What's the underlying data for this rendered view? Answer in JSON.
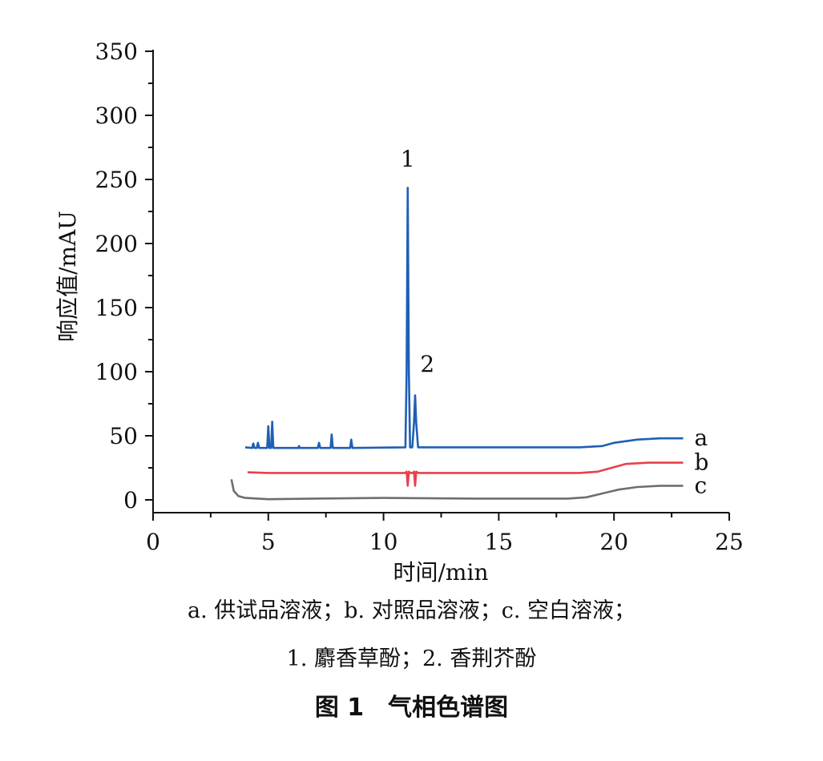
{
  "chart_data": {
    "type": "line",
    "title": "",
    "xlabel": "时间/min",
    "ylabel": "响应值/mAU",
    "xlim": [
      0,
      25
    ],
    "ylim": [
      -10,
      350
    ],
    "x_ticks": [
      0,
      5,
      10,
      15,
      20,
      25
    ],
    "y_ticks": [
      0,
      50,
      100,
      150,
      200,
      250,
      300,
      350
    ],
    "grid": false,
    "series": [
      {
        "name": "a",
        "color": "#1f5fb4",
        "points": [
          [
            4.0,
            41
          ],
          [
            4.3,
            40.5
          ],
          [
            4.35,
            44
          ],
          [
            4.4,
            40.5
          ],
          [
            4.5,
            40.5
          ],
          [
            4.55,
            44.5
          ],
          [
            4.6,
            40.5
          ],
          [
            4.95,
            40.5
          ],
          [
            5.0,
            57.5
          ],
          [
            5.05,
            40.5
          ],
          [
            5.12,
            40.5
          ],
          [
            5.17,
            61
          ],
          [
            5.22,
            40.5
          ],
          [
            6.3,
            40.5
          ],
          [
            6.33,
            42
          ],
          [
            6.36,
            40.5
          ],
          [
            7.15,
            40.5
          ],
          [
            7.2,
            44.5
          ],
          [
            7.25,
            40.5
          ],
          [
            7.7,
            40.5
          ],
          [
            7.75,
            51
          ],
          [
            7.8,
            40.5
          ],
          [
            8.55,
            40.5
          ],
          [
            8.6,
            47
          ],
          [
            8.65,
            40.5
          ],
          [
            10.95,
            41
          ],
          [
            11.0,
            100
          ],
          [
            11.05,
            243.5
          ],
          [
            11.1,
            100
          ],
          [
            11.15,
            41
          ],
          [
            11.25,
            41
          ],
          [
            11.32,
            60
          ],
          [
            11.37,
            81.5
          ],
          [
            11.42,
            60
          ],
          [
            11.5,
            41
          ],
          [
            18.5,
            41
          ],
          [
            19.5,
            42
          ],
          [
            20.0,
            44.5
          ],
          [
            21.0,
            47
          ],
          [
            22.0,
            48
          ],
          [
            23.0,
            48
          ]
        ]
      },
      {
        "name": "b",
        "color": "#e8404a",
        "points": [
          [
            4.1,
            21.5
          ],
          [
            5.0,
            21
          ],
          [
            8.0,
            21
          ],
          [
            10.95,
            21
          ],
          [
            11.0,
            22
          ],
          [
            11.05,
            11
          ],
          [
            11.1,
            22
          ],
          [
            11.15,
            21
          ],
          [
            11.28,
            21
          ],
          [
            11.32,
            22
          ],
          [
            11.37,
            11
          ],
          [
            11.42,
            22
          ],
          [
            11.5,
            21
          ],
          [
            17.0,
            21
          ],
          [
            18.5,
            21
          ],
          [
            19.3,
            22
          ],
          [
            19.9,
            25
          ],
          [
            20.5,
            28
          ],
          [
            21.5,
            29
          ],
          [
            23.0,
            29
          ]
        ]
      },
      {
        "name": "c",
        "color": "#6e6e6e",
        "points": [
          [
            3.4,
            16
          ],
          [
            3.5,
            7
          ],
          [
            3.7,
            3
          ],
          [
            4.0,
            1.5
          ],
          [
            5.0,
            0.5
          ],
          [
            7.0,
            1
          ],
          [
            10.0,
            1.5
          ],
          [
            14.0,
            1
          ],
          [
            18.0,
            1
          ],
          [
            18.8,
            2
          ],
          [
            19.5,
            5
          ],
          [
            20.2,
            8
          ],
          [
            21.0,
            10
          ],
          [
            22.0,
            11
          ],
          [
            23.0,
            11
          ]
        ]
      }
    ],
    "annotations": [
      {
        "text": "1",
        "x": 11.05,
        "y": 260
      },
      {
        "text": "2",
        "x": 11.9,
        "y": 100
      }
    ]
  },
  "legend": {
    "line1": "a. 供试品溶液；b. 对照品溶液；c. 空白溶液；",
    "line2": "1. 麝香草酚；2. 香荆芥酚"
  },
  "figure_title": "图 1　气相色谱图"
}
